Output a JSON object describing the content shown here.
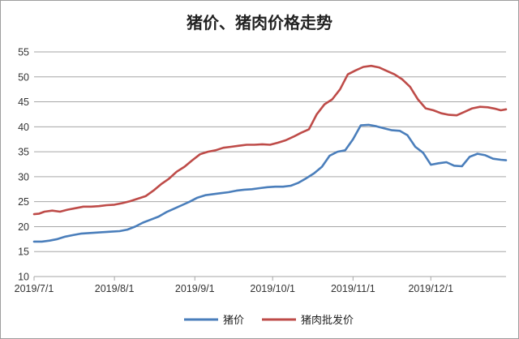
{
  "chart_data": {
    "type": "line",
    "title": "猪价、猪肉价格走势",
    "xlabel": "",
    "ylabel": "",
    "ylim": [
      10,
      55
    ],
    "yticks": [
      10,
      15,
      20,
      25,
      30,
      35,
      40,
      45,
      50,
      55
    ],
    "xlim": [
      "2019-07-01",
      "2019-12-30"
    ],
    "xticks": [
      {
        "date": "2019-07-01",
        "label": "2019/7/1"
      },
      {
        "date": "2019-08-01",
        "label": "2019/8/1"
      },
      {
        "date": "2019-09-01",
        "label": "2019/9/1"
      },
      {
        "date": "2019-10-01",
        "label": "2019/10/1"
      },
      {
        "date": "2019-11-01",
        "label": "2019/11/1"
      },
      {
        "date": "2019-12-01",
        "label": "2019/12/1"
      }
    ],
    "grid": true,
    "legend_position": "bottom",
    "series": [
      {
        "name": "猪价",
        "color": "#4A7EBB",
        "points": [
          [
            "2019-07-01",
            17.0
          ],
          [
            "2019-07-04",
            17.0
          ],
          [
            "2019-07-07",
            17.2
          ],
          [
            "2019-07-10",
            17.5
          ],
          [
            "2019-07-13",
            18.0
          ],
          [
            "2019-07-16",
            18.3
          ],
          [
            "2019-07-19",
            18.6
          ],
          [
            "2019-07-22",
            18.7
          ],
          [
            "2019-07-25",
            18.8
          ],
          [
            "2019-07-28",
            18.9
          ],
          [
            "2019-07-31",
            19.0
          ],
          [
            "2019-08-03",
            19.1
          ],
          [
            "2019-08-06",
            19.4
          ],
          [
            "2019-08-09",
            20.0
          ],
          [
            "2019-08-12",
            20.8
          ],
          [
            "2019-08-15",
            21.4
          ],
          [
            "2019-08-18",
            22.0
          ],
          [
            "2019-08-21",
            22.9
          ],
          [
            "2019-08-24",
            23.6
          ],
          [
            "2019-08-27",
            24.3
          ],
          [
            "2019-08-30",
            25.0
          ],
          [
            "2019-09-02",
            25.8
          ],
          [
            "2019-09-05",
            26.3
          ],
          [
            "2019-09-08",
            26.5
          ],
          [
            "2019-09-11",
            26.7
          ],
          [
            "2019-09-14",
            26.9
          ],
          [
            "2019-09-17",
            27.2
          ],
          [
            "2019-09-20",
            27.4
          ],
          [
            "2019-09-23",
            27.5
          ],
          [
            "2019-09-26",
            27.7
          ],
          [
            "2019-09-29",
            27.9
          ],
          [
            "2019-10-02",
            28.0
          ],
          [
            "2019-10-05",
            28.0
          ],
          [
            "2019-10-08",
            28.2
          ],
          [
            "2019-10-11",
            28.8
          ],
          [
            "2019-10-14",
            29.7
          ],
          [
            "2019-10-17",
            30.7
          ],
          [
            "2019-10-20",
            32.0
          ],
          [
            "2019-10-23",
            34.2
          ],
          [
            "2019-10-26",
            35.0
          ],
          [
            "2019-10-29",
            35.3
          ],
          [
            "2019-11-01",
            37.5
          ],
          [
            "2019-11-04",
            40.3
          ],
          [
            "2019-11-07",
            40.4
          ],
          [
            "2019-11-10",
            40.1
          ],
          [
            "2019-11-13",
            39.7
          ],
          [
            "2019-11-16",
            39.3
          ],
          [
            "2019-11-19",
            39.2
          ],
          [
            "2019-11-22",
            38.3
          ],
          [
            "2019-11-25",
            36.0
          ],
          [
            "2019-11-28",
            34.8
          ],
          [
            "2019-12-01",
            32.4
          ],
          [
            "2019-12-04",
            32.7
          ],
          [
            "2019-12-07",
            32.9
          ],
          [
            "2019-12-10",
            32.2
          ],
          [
            "2019-12-13",
            32.1
          ],
          [
            "2019-12-16",
            34.0
          ],
          [
            "2019-12-19",
            34.6
          ],
          [
            "2019-12-22",
            34.3
          ],
          [
            "2019-12-25",
            33.6
          ],
          [
            "2019-12-28",
            33.4
          ],
          [
            "2019-12-30",
            33.3
          ]
        ]
      },
      {
        "name": "猪肉批发价",
        "color": "#BE4B48",
        "points": [
          [
            "2019-07-01",
            22.5
          ],
          [
            "2019-07-03",
            22.6
          ],
          [
            "2019-07-05",
            23.0
          ],
          [
            "2019-07-08",
            23.2
          ],
          [
            "2019-07-11",
            23.0
          ],
          [
            "2019-07-14",
            23.4
          ],
          [
            "2019-07-17",
            23.7
          ],
          [
            "2019-07-20",
            24.0
          ],
          [
            "2019-07-23",
            24.0
          ],
          [
            "2019-07-26",
            24.1
          ],
          [
            "2019-07-29",
            24.3
          ],
          [
            "2019-08-01",
            24.4
          ],
          [
            "2019-08-04",
            24.7
          ],
          [
            "2019-08-07",
            25.1
          ],
          [
            "2019-08-10",
            25.6
          ],
          [
            "2019-08-13",
            26.1
          ],
          [
            "2019-08-16",
            27.2
          ],
          [
            "2019-08-19",
            28.5
          ],
          [
            "2019-08-22",
            29.6
          ],
          [
            "2019-08-25",
            31.0
          ],
          [
            "2019-08-28",
            32.0
          ],
          [
            "2019-08-31",
            33.3
          ],
          [
            "2019-09-03",
            34.5
          ],
          [
            "2019-09-06",
            35.0
          ],
          [
            "2019-09-09",
            35.3
          ],
          [
            "2019-09-12",
            35.8
          ],
          [
            "2019-09-15",
            36.0
          ],
          [
            "2019-09-18",
            36.2
          ],
          [
            "2019-09-21",
            36.4
          ],
          [
            "2019-09-24",
            36.4
          ],
          [
            "2019-09-27",
            36.5
          ],
          [
            "2019-09-30",
            36.4
          ],
          [
            "2019-10-03",
            36.8
          ],
          [
            "2019-10-06",
            37.3
          ],
          [
            "2019-10-09",
            38.0
          ],
          [
            "2019-10-12",
            38.8
          ],
          [
            "2019-10-15",
            39.5
          ],
          [
            "2019-10-18",
            42.5
          ],
          [
            "2019-10-21",
            44.5
          ],
          [
            "2019-10-24",
            45.5
          ],
          [
            "2019-10-27",
            47.5
          ],
          [
            "2019-10-30",
            50.5
          ],
          [
            "2019-11-02",
            51.3
          ],
          [
            "2019-11-05",
            52.0
          ],
          [
            "2019-11-08",
            52.2
          ],
          [
            "2019-11-11",
            51.9
          ],
          [
            "2019-11-14",
            51.2
          ],
          [
            "2019-11-17",
            50.5
          ],
          [
            "2019-11-20",
            49.5
          ],
          [
            "2019-11-23",
            48.0
          ],
          [
            "2019-11-26",
            45.5
          ],
          [
            "2019-11-29",
            43.7
          ],
          [
            "2019-12-02",
            43.3
          ],
          [
            "2019-12-05",
            42.7
          ],
          [
            "2019-12-08",
            42.4
          ],
          [
            "2019-12-11",
            42.3
          ],
          [
            "2019-12-14",
            43.0
          ],
          [
            "2019-12-17",
            43.7
          ],
          [
            "2019-12-20",
            44.0
          ],
          [
            "2019-12-23",
            43.9
          ],
          [
            "2019-12-26",
            43.6
          ],
          [
            "2019-12-28",
            43.3
          ],
          [
            "2019-12-30",
            43.5
          ]
        ]
      }
    ]
  }
}
